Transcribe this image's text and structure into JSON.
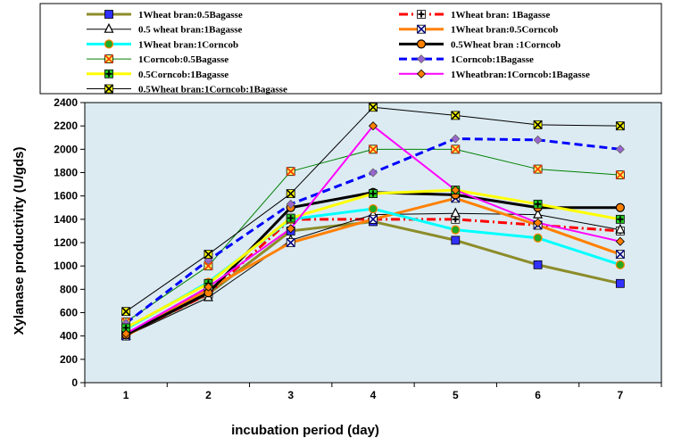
{
  "chart_data": {
    "type": "line",
    "xlabel": "incubation period (day)",
    "ylabel": "Xylanase productivity (U/gds)",
    "x": [
      1,
      2,
      3,
      4,
      5,
      6,
      7
    ],
    "xlim": [
      0.5,
      7.5
    ],
    "ylim": [
      0,
      2400
    ],
    "ytick_step": 200,
    "grid": false,
    "legend_position": "top",
    "plot_background": "#dcebf2",
    "series": [
      {
        "name": "1Wheat bran:0.5Bagasse",
        "values": [
          410,
          760,
          1300,
          1380,
          1220,
          1010,
          850
        ],
        "color": "#8c8c2a",
        "marker": "square-blue",
        "dash": "solid",
        "width": 3
      },
      {
        "name": "1Wheat bran: 1Bagasse",
        "values": [
          410,
          760,
          1400,
          1400,
          1400,
          1350,
          1300
        ],
        "color": "#ff0000",
        "marker": "square-plus",
        "dash": "dash-dot",
        "width": 3
      },
      {
        "name": "0.5 wheat bran:1Bagasse",
        "values": [
          400,
          730,
          1220,
          1440,
          1450,
          1440,
          1310
        ],
        "color": "#000000",
        "marker": "triangle",
        "dash": "solid",
        "width": 1
      },
      {
        "name": "1Wheat bran:0.5Corncob",
        "values": [
          400,
          800,
          1200,
          1400,
          1580,
          1350,
          1100
        ],
        "color": "#ff8000",
        "marker": "square-x",
        "dash": "solid",
        "width": 3
      },
      {
        "name": "1Wheat bran:1Corncob",
        "values": [
          460,
          860,
          1400,
          1490,
          1310,
          1240,
          1010
        ],
        "color": "#00ffff",
        "marker": "circle-green",
        "dash": "solid",
        "width": 3
      },
      {
        "name": "0.5Wheat bran :1Corncob",
        "values": [
          410,
          770,
          1500,
          1630,
          1610,
          1500,
          1500
        ],
        "color": "#000000",
        "marker": "circle-orange",
        "dash": "solid",
        "width": 3
      },
      {
        "name": "1Corncob:0.5Bagasse",
        "values": [
          520,
          1000,
          1810,
          2000,
          2000,
          1830,
          1780
        ],
        "color": "#008000",
        "marker": "x-orange",
        "dash": "solid",
        "width": 1
      },
      {
        "name": "1Corncob:1Bagasse",
        "values": [
          510,
          1050,
          1530,
          1800,
          2090,
          2080,
          2000
        ],
        "color": "#0000ff",
        "marker": "diamond-purple",
        "dash": "dash",
        "width": 3
      },
      {
        "name": "0.5Corncob:1Bagasse",
        "values": [
          470,
          850,
          1410,
          1620,
          1650,
          1530,
          1400
        ],
        "color": "#ffff00",
        "marker": "square-plus-green",
        "dash": "solid",
        "width": 3
      },
      {
        "name": "1Wheatbran:1Corncob:1Bagasse",
        "values": [
          420,
          820,
          1320,
          2200,
          1650,
          1370,
          1210
        ],
        "color": "#ff00ff",
        "marker": "diamond-orange",
        "dash": "solid",
        "width": 2
      },
      {
        "name": "0.5Wheat bran:1Corncob:1Bagasse",
        "values": [
          610,
          1100,
          1620,
          2360,
          2290,
          2210,
          2200
        ],
        "color": "#000000",
        "marker": "x-yellow",
        "dash": "solid",
        "width": 1
      }
    ]
  }
}
